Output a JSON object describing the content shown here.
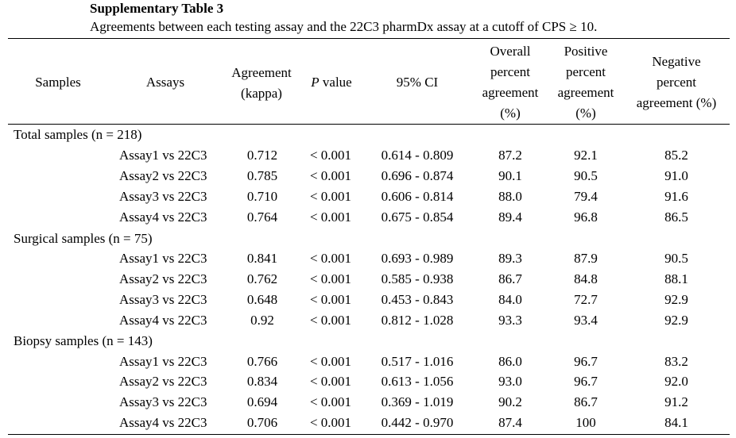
{
  "caption": {
    "title": "Supplementary Table 3",
    "subtitle": "Agreements between each testing assay and the 22C3 pharmDx assay at a cutoff of CPS ≥ 10."
  },
  "headers": {
    "samples": "Samples",
    "assays": "Assays",
    "agreement": [
      "Agreement",
      "(kappa)"
    ],
    "pvalue_italic": "P",
    "pvalue_rest": " value",
    "ci": "95% CI",
    "overall": [
      "Overall",
      "percent",
      "agreement",
      "(%)"
    ],
    "positive": [
      "Positive",
      "percent",
      "agreement",
      "(%)"
    ],
    "negative": [
      "Negative",
      "percent",
      "agreement (%)"
    ]
  },
  "groups": [
    {
      "label": "Total samples (n = 218)",
      "rows": [
        {
          "assay": "Assay1 vs 22C3",
          "kappa": "0.712",
          "p": "< 0.001",
          "ci": "0.614 - 0.809",
          "opa": "87.2",
          "ppa": "92.1",
          "npa": "85.2"
        },
        {
          "assay": "Assay2 vs 22C3",
          "kappa": "0.785",
          "p": "< 0.001",
          "ci": "0.696 - 0.874",
          "opa": "90.1",
          "ppa": "90.5",
          "npa": "91.0"
        },
        {
          "assay": "Assay3 vs 22C3",
          "kappa": "0.710",
          "p": "< 0.001",
          "ci": "0.606 - 0.814",
          "opa": "88.0",
          "ppa": "79.4",
          "npa": "91.6"
        },
        {
          "assay": "Assay4 vs 22C3",
          "kappa": "0.764",
          "p": "< 0.001",
          "ci": "0.675 - 0.854",
          "opa": "89.4",
          "ppa": "96.8",
          "npa": "86.5"
        }
      ]
    },
    {
      "label": "Surgical samples (n = 75)",
      "rows": [
        {
          "assay": "Assay1 vs 22C3",
          "kappa": "0.841",
          "p": "< 0.001",
          "ci": "0.693 - 0.989",
          "opa": "89.3",
          "ppa": "87.9",
          "npa": "90.5"
        },
        {
          "assay": "Assay2 vs 22C3",
          "kappa": "0.762",
          "p": "< 0.001",
          "ci": "0.585 - 0.938",
          "opa": "86.7",
          "ppa": "84.8",
          "npa": "88.1"
        },
        {
          "assay": "Assay3 vs 22C3",
          "kappa": "0.648",
          "p": "< 0.001",
          "ci": "0.453 - 0.843",
          "opa": "84.0",
          "ppa": "72.7",
          "npa": "92.9"
        },
        {
          "assay": "Assay4 vs 22C3",
          "kappa": "0.92",
          "p": "< 0.001",
          "ci": "0.812 - 1.028",
          "opa": "93.3",
          "ppa": "93.4",
          "npa": "92.9"
        }
      ]
    },
    {
      "label": "Biopsy samples (n = 143)",
      "rows": [
        {
          "assay": "Assay1 vs 22C3",
          "kappa": "0.766",
          "p": "< 0.001",
          "ci": "0.517 - 1.016",
          "opa": "86.0",
          "ppa": "96.7",
          "npa": "83.2"
        },
        {
          "assay": "Assay2 vs 22C3",
          "kappa": "0.834",
          "p": "< 0.001",
          "ci": "0.613 - 1.056",
          "opa": "93.0",
          "ppa": "96.7",
          "npa": "92.0"
        },
        {
          "assay": "Assay3 vs 22C3",
          "kappa": "0.694",
          "p": "< 0.001",
          "ci": "0.369 - 1.019",
          "opa": "90.2",
          "ppa": "86.7",
          "npa": "91.2"
        },
        {
          "assay": "Assay4 vs 22C3",
          "kappa": "0.706",
          "p": "< 0.001",
          "ci": "0.442 - 0.970",
          "opa": "87.4",
          "ppa": "100",
          "npa": "84.1"
        }
      ]
    }
  ]
}
